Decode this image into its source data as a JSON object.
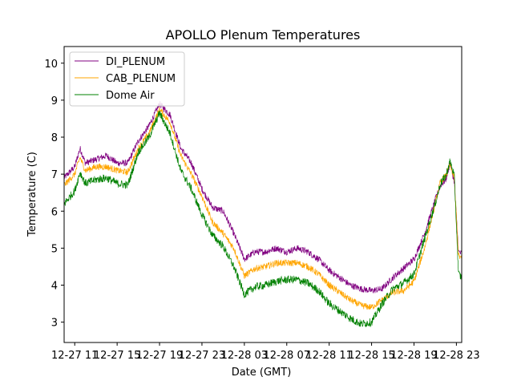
{
  "chart_data": {
    "type": "line",
    "title": "APOLLO Plenum Temperatures",
    "xlabel": "Date (GMT)",
    "ylabel": "Temperature (C)",
    "xlim": [
      10,
      47.5
    ],
    "ylim": [
      2.45,
      10.45
    ],
    "xticks": [
      {
        "value": 11,
        "label": "12-27 11"
      },
      {
        "value": 15,
        "label": "12-27 15"
      },
      {
        "value": 19,
        "label": "12-27 19"
      },
      {
        "value": 23,
        "label": "12-27 23"
      },
      {
        "value": 27,
        "label": "12-28 03"
      },
      {
        "value": 31,
        "label": "12-28 07"
      },
      {
        "value": 35,
        "label": "12-28 11"
      },
      {
        "value": 39,
        "label": "12-28 15"
      },
      {
        "value": 43,
        "label": "12-28 19"
      },
      {
        "value": 47,
        "label": "12-28 23"
      }
    ],
    "yticks": [
      3,
      4,
      5,
      6,
      7,
      8,
      9,
      10
    ],
    "legend_position": "top-left",
    "series": [
      {
        "name": "DI_PLENUM",
        "color": "#800080",
        "noise": 0.09,
        "x": [
          10,
          11.0,
          11.5,
          12.0,
          13.0,
          14.0,
          15.0,
          16.0,
          17.0,
          18.0,
          19.0,
          20.0,
          21.0,
          22.0,
          23.0,
          24.0,
          25.0,
          26.0,
          27.0,
          28.0,
          29.0,
          30.0,
          31.0,
          32.0,
          33.0,
          34.0,
          35.0,
          36.0,
          37.0,
          38.0,
          39.0,
          40.0,
          41.0,
          42.0,
          43.0,
          44.0,
          45.0,
          45.5,
          46.0,
          46.4,
          46.8,
          47.2,
          47.5
        ],
        "y": [
          6.9,
          7.2,
          7.7,
          7.3,
          7.4,
          7.5,
          7.3,
          7.3,
          7.9,
          8.3,
          8.9,
          8.6,
          7.7,
          7.3,
          6.6,
          6.1,
          6.0,
          5.4,
          4.7,
          4.9,
          4.9,
          5.0,
          4.9,
          5.0,
          4.9,
          4.7,
          4.4,
          4.2,
          4.0,
          3.9,
          3.85,
          3.9,
          4.2,
          4.45,
          4.7,
          5.4,
          6.3,
          6.7,
          6.85,
          7.3,
          6.8,
          4.9,
          4.85
        ]
      },
      {
        "name": "CAB_PLENUM",
        "color": "#ffa500",
        "noise": 0.09,
        "x": [
          10,
          11.0,
          11.5,
          12.0,
          13.0,
          14.0,
          15.0,
          16.0,
          17.0,
          18.0,
          19.0,
          20.0,
          21.0,
          22.0,
          23.0,
          24.0,
          25.0,
          26.0,
          27.0,
          28.0,
          29.0,
          30.0,
          31.0,
          32.0,
          33.0,
          34.0,
          35.0,
          36.0,
          37.0,
          38.0,
          39.0,
          40.0,
          41.0,
          42.0,
          43.0,
          44.0,
          45.0,
          45.5,
          46.0,
          46.4,
          46.8,
          47.2,
          47.5
        ],
        "y": [
          6.7,
          7.0,
          7.45,
          7.1,
          7.2,
          7.2,
          7.1,
          7.05,
          7.7,
          8.1,
          8.75,
          8.4,
          7.5,
          7.0,
          6.4,
          5.7,
          5.4,
          5.0,
          4.25,
          4.45,
          4.5,
          4.6,
          4.6,
          4.6,
          4.5,
          4.3,
          4.0,
          3.8,
          3.6,
          3.45,
          3.4,
          3.6,
          3.8,
          3.85,
          4.1,
          5.0,
          6.2,
          6.8,
          6.95,
          7.25,
          6.9,
          4.8,
          4.7
        ]
      },
      {
        "name": "Dome Air",
        "color": "#008000",
        "noise": 0.11,
        "x": [
          10,
          11.0,
          11.5,
          12.0,
          13.0,
          14.0,
          15.0,
          16.0,
          17.0,
          18.0,
          19.0,
          20.0,
          21.0,
          22.0,
          23.0,
          24.0,
          25.0,
          26.0,
          27.0,
          28.0,
          29.0,
          30.0,
          31.0,
          32.0,
          33.0,
          34.0,
          35.0,
          36.0,
          37.0,
          38.0,
          39.0,
          40.0,
          41.0,
          42.0,
          43.0,
          44.0,
          45.0,
          45.5,
          46.0,
          46.4,
          46.8,
          47.2,
          47.5
        ],
        "y": [
          6.2,
          6.55,
          7.05,
          6.75,
          6.85,
          6.9,
          6.75,
          6.7,
          7.6,
          8.0,
          8.65,
          8.1,
          7.1,
          6.6,
          5.9,
          5.35,
          5.05,
          4.5,
          3.75,
          3.95,
          4.0,
          4.1,
          4.15,
          4.15,
          4.05,
          3.85,
          3.5,
          3.3,
          3.1,
          2.95,
          3.0,
          3.5,
          3.9,
          4.05,
          4.3,
          5.25,
          6.2,
          6.75,
          6.95,
          7.35,
          6.95,
          4.3,
          4.2
        ]
      }
    ]
  }
}
